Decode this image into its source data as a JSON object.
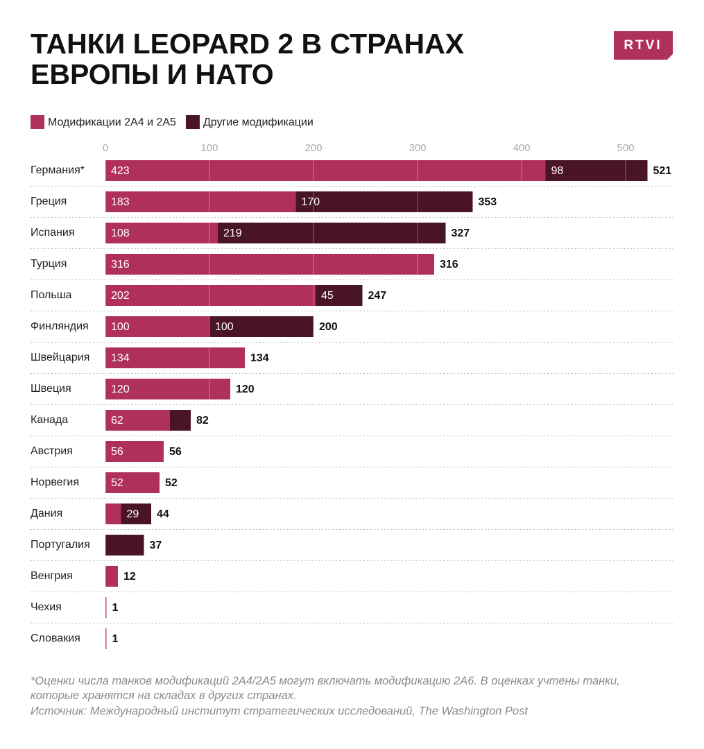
{
  "logo": "RTVI",
  "chart_data": {
    "type": "stacked-bar-horizontal",
    "title": [
      "ТАНКИ LEOPARD 2 В СТРАНАХ",
      "ЕВРОПЫ И НАТО"
    ],
    "categories": [
      "Германия*",
      "Греция",
      "Испания",
      "Турция",
      "Польша",
      "Финляндия",
      "Швейцария",
      "Швеция",
      "Канада",
      "Австрия",
      "Норвегия",
      "Дания",
      "Португалия",
      "Венгрия",
      "Чехия",
      "Словакия"
    ],
    "series": [
      {
        "name": "Модификации 2А4 и 2А5",
        "color": "#b0305c",
        "values": [
          423,
          183,
          108,
          316,
          202,
          100,
          134,
          120,
          62,
          56,
          52,
          15,
          0,
          12,
          1,
          1
        ]
      },
      {
        "name": "Другие модификации",
        "color": "#4a1428",
        "values": [
          98,
          170,
          219,
          0,
          45,
          100,
          0,
          0,
          20,
          0,
          0,
          29,
          37,
          0,
          0,
          0
        ]
      }
    ],
    "totals": [
      521,
      353,
      327,
      316,
      247,
      200,
      134,
      120,
      82,
      56,
      52,
      44,
      37,
      12,
      1,
      1
    ],
    "xlim": [
      0,
      540
    ],
    "xticks": [
      0,
      100,
      200,
      300,
      400,
      500
    ],
    "grid": true,
    "legend": "top-left",
    "notes": [
      "*Оценки числа танков модификаций 2А4/2А5 могут включать модификацию 2А6. В оценках учтены танки, которые хранятся на складах в других странах.",
      "Источник: Международный институт стратегических исследований, The Washington Post"
    ]
  }
}
